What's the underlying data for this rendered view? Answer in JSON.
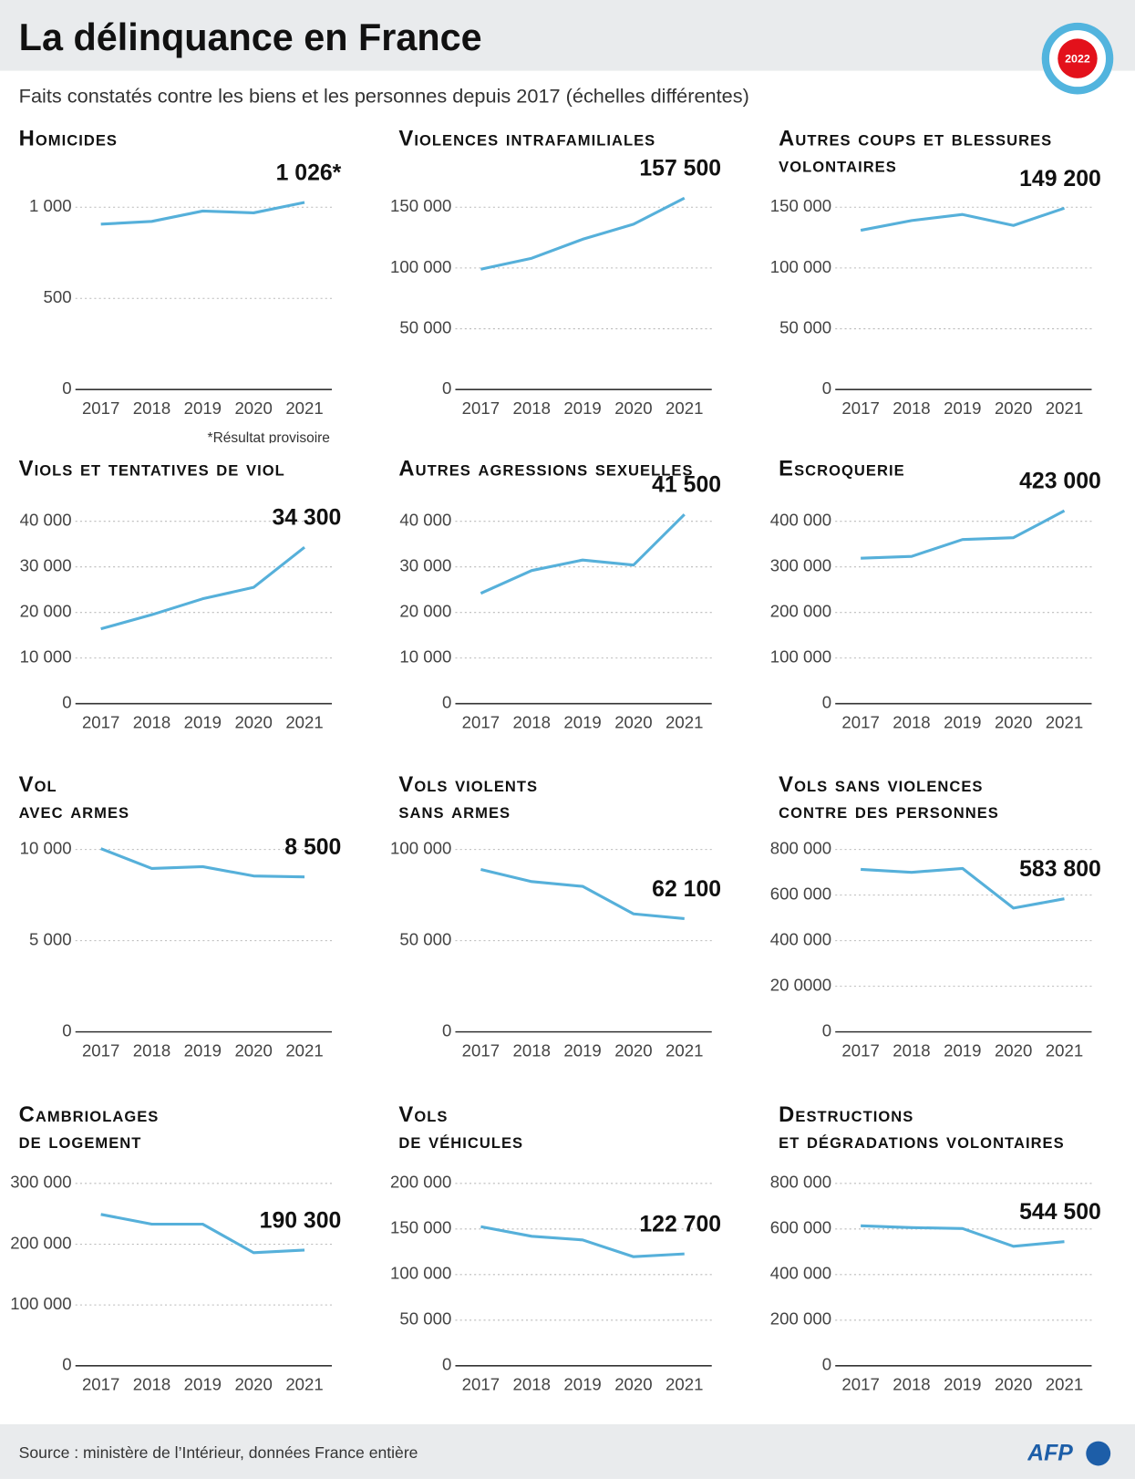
{
  "title": "La délinquance en France",
  "subtitle": "Faits constatés contre les biens et les personnes depuis 2017 (échelles différentes)",
  "badge": "2022",
  "source": "Source : ministère de l’Intérieur, données France entière",
  "logo": "AFP",
  "chart_data": [
    {
      "type": "line",
      "title": "Homicides",
      "note": "*Résultat provisoire",
      "color": "#56b0da",
      "categories": [
        "2017",
        "2018",
        "2019",
        "2020",
        "2021"
      ],
      "values": [
        907,
        922,
        979,
        969,
        1026
      ],
      "value_labels": [
        null,
        null,
        null,
        null,
        "1 026*"
      ],
      "ylim": [
        0,
        1200
      ],
      "yticks": [
        0,
        500,
        {
          "value": 1000,
          "label": "1 000"
        }
      ],
      "grid": true
    },
    {
      "type": "line",
      "title": "Violences intrafamiliales",
      "color": "#56b0da",
      "categories": [
        "2017",
        "2018",
        "2019",
        "2020",
        "2021"
      ],
      "values": [
        99000,
        108000,
        123600,
        136000,
        157500
      ],
      "value_labels": [
        null,
        null,
        null,
        null,
        "157 500"
      ],
      "ylim": [
        0,
        180000
      ],
      "yticks": [
        0,
        {
          "value": 50000,
          "label": "50 000"
        },
        {
          "value": 100000,
          "label": "100 000"
        },
        {
          "value": 150000,
          "label": "150 000"
        }
      ],
      "grid": true
    },
    {
      "type": "line",
      "title": "Autres coups et blessures\nvolontaires",
      "color": "#56b0da",
      "categories": [
        "2017",
        "2018",
        "2019",
        "2020",
        "2021"
      ],
      "values": [
        131000,
        139000,
        144000,
        135000,
        149200
      ],
      "value_labels": [
        null,
        null,
        null,
        null,
        "149 200"
      ],
      "ylim": [
        0,
        180000
      ],
      "yticks": [
        0,
        {
          "value": 50000,
          "label": "50 000"
        },
        {
          "value": 100000,
          "label": "100 000"
        },
        {
          "value": 150000,
          "label": "150 000"
        }
      ],
      "grid": true
    },
    {
      "type": "line",
      "title": "Viols et tentatives de viol",
      "color": "#56b0da",
      "categories": [
        "2017",
        "2018",
        "2019",
        "2020",
        "2021"
      ],
      "values": [
        16400,
        19500,
        23000,
        25500,
        34300
      ],
      "value_labels": [
        null,
        null,
        null,
        null,
        "34 300"
      ],
      "ylim": [
        0,
        48000
      ],
      "yticks": [
        0,
        {
          "value": 10000,
          "label": "10 000"
        },
        {
          "value": 20000,
          "label": "20 000"
        },
        {
          "value": 30000,
          "label": "30 000"
        },
        {
          "value": 40000,
          "label": "40 000"
        }
      ],
      "grid": true
    },
    {
      "type": "line",
      "title": "Autres agressions sexuelles",
      "color": "#56b0da",
      "categories": [
        "2017",
        "2018",
        "2019",
        "2020",
        "2021"
      ],
      "values": [
        24200,
        29200,
        31500,
        30400,
        41500
      ],
      "value_labels": [
        null,
        null,
        null,
        null,
        "41 500"
      ],
      "ylim": [
        0,
        48000
      ],
      "yticks": [
        0,
        {
          "value": 10000,
          "label": "10 000"
        },
        {
          "value": 20000,
          "label": "20 000"
        },
        {
          "value": 30000,
          "label": "30 000"
        },
        {
          "value": 40000,
          "label": "40 000"
        }
      ],
      "grid": true
    },
    {
      "type": "line",
      "title": "Escroquerie",
      "color": "#56b0da",
      "categories": [
        "2017",
        "2018",
        "2019",
        "2020",
        "2021"
      ],
      "values": [
        319000,
        323000,
        360000,
        364000,
        423000
      ],
      "value_labels": [
        null,
        null,
        null,
        null,
        "423 000"
      ],
      "ylim": [
        0,
        480000
      ],
      "yticks": [
        0,
        {
          "value": 100000,
          "label": "100 000"
        },
        {
          "value": 200000,
          "label": "200 000"
        },
        {
          "value": 300000,
          "label": "300 000"
        },
        {
          "value": 400000,
          "label": "400 000"
        }
      ],
      "grid": true
    },
    {
      "type": "line",
      "title": "Vol\navec armes",
      "color": "#56b0da",
      "categories": [
        "2017",
        "2018",
        "2019",
        "2020",
        "2021"
      ],
      "values": [
        10050,
        8960,
        9060,
        8550,
        8500
      ],
      "value_labels": [
        null,
        null,
        null,
        null,
        "8 500"
      ],
      "ylim": [
        0,
        12000
      ],
      "yticks": [
        0,
        {
          "value": 5000,
          "label": "5 000"
        },
        {
          "value": 10000,
          "label": "10 000"
        }
      ],
      "grid": true
    },
    {
      "type": "line",
      "title": "Vols violents\nsans armes",
      "color": "#56b0da",
      "categories": [
        "2017",
        "2018",
        "2019",
        "2020",
        "2021"
      ],
      "values": [
        89100,
        82400,
        79800,
        64700,
        62100
      ],
      "value_labels": [
        null,
        null,
        null,
        null,
        "62 100"
      ],
      "ylim": [
        0,
        120000
      ],
      "yticks": [
        0,
        {
          "value": 50000,
          "label": "50 000"
        },
        {
          "value": 100000,
          "label": "100 000"
        }
      ],
      "grid": true
    },
    {
      "type": "line",
      "title": "Vols sans violences\ncontre des personnes",
      "color": "#56b0da",
      "categories": [
        "2017",
        "2018",
        "2019",
        "2020",
        "2021"
      ],
      "values": [
        713000,
        700000,
        717000,
        543000,
        583800
      ],
      "value_labels": [
        null,
        null,
        null,
        null,
        "583 800"
      ],
      "ylim": [
        0,
        960000
      ],
      "yticks": [
        0,
        {
          "value": 200000,
          "label": "20 0000"
        },
        {
          "value": 400000,
          "label": "400 000"
        },
        {
          "value": 600000,
          "label": "600 000"
        },
        {
          "value": 800000,
          "label": "800 000"
        }
      ],
      "grid": true
    },
    {
      "type": "line",
      "title": "Cambriolages\nde logement",
      "color": "#56b0da",
      "categories": [
        "2017",
        "2018",
        "2019",
        "2020",
        "2021"
      ],
      "values": [
        249000,
        233000,
        233000,
        186000,
        190300
      ],
      "value_labels": [
        null,
        null,
        null,
        null,
        "190 300"
      ],
      "ylim": [
        0,
        360000
      ],
      "yticks": [
        0,
        {
          "value": 100000,
          "label": "100 000"
        },
        {
          "value": 200000,
          "label": "200 000"
        },
        {
          "value": 300000,
          "label": "300 000"
        }
      ],
      "grid": true
    },
    {
      "type": "line",
      "title": "Vols\nde véhicules",
      "color": "#56b0da",
      "categories": [
        "2017",
        "2018",
        "2019",
        "2020",
        "2021"
      ],
      "values": [
        152600,
        142000,
        138000,
        119600,
        122700
      ],
      "value_labels": [
        null,
        null,
        null,
        null,
        "122 700"
      ],
      "ylim": [
        0,
        240000
      ],
      "yticks": [
        0,
        {
          "value": 50000,
          "label": "50 000"
        },
        {
          "value": 100000,
          "label": "100 000"
        },
        {
          "value": 150000,
          "label": "150 000"
        },
        {
          "value": 200000,
          "label": "200 000"
        }
      ],
      "grid": true
    },
    {
      "type": "line",
      "title": "Destructions\net dégradations volontaires",
      "color": "#56b0da",
      "categories": [
        "2017",
        "2018",
        "2019",
        "2020",
        "2021"
      ],
      "values": [
        614000,
        606000,
        602000,
        524000,
        544500
      ],
      "value_labels": [
        null,
        null,
        null,
        null,
        "544 500"
      ],
      "ylim": [
        0,
        960000
      ],
      "yticks": [
        0,
        {
          "value": 200000,
          "label": "200 000"
        },
        {
          "value": 400000,
          "label": "400 000"
        },
        {
          "value": 600000,
          "label": "600 000"
        },
        {
          "value": 800000,
          "label": "800 000"
        }
      ],
      "grid": true
    }
  ]
}
